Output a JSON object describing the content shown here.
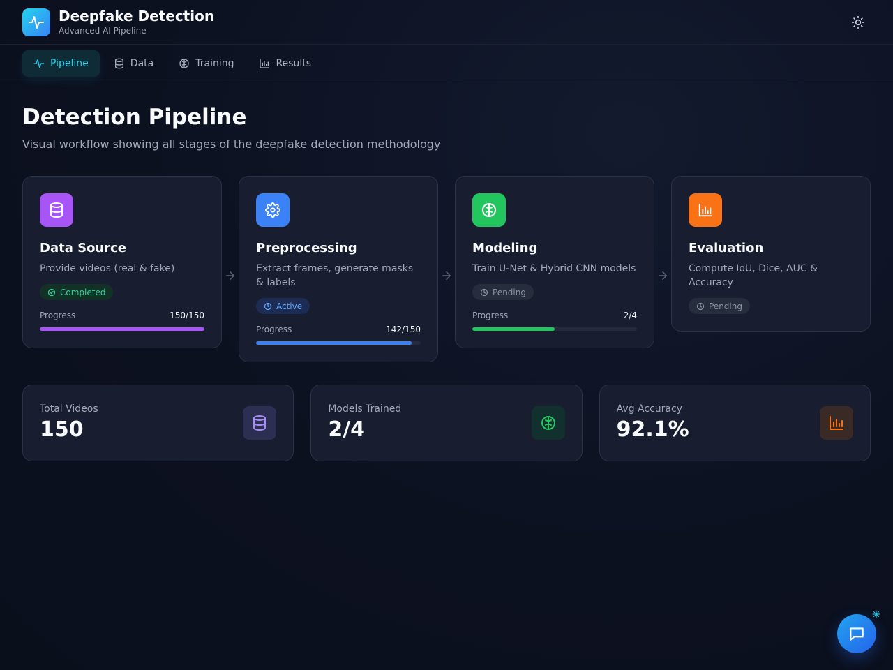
{
  "app": {
    "title": "Deepfake Detection",
    "subtitle": "Advanced AI Pipeline",
    "accent": "#22d3ee"
  },
  "header": {
    "theme_toggle_icon": "sun-icon"
  },
  "nav": {
    "items": [
      {
        "label": "Pipeline",
        "icon": "activity-icon",
        "active": true
      },
      {
        "label": "Data",
        "icon": "database-icon",
        "active": false
      },
      {
        "label": "Training",
        "icon": "brain-icon",
        "active": false
      },
      {
        "label": "Results",
        "icon": "bar-chart-icon",
        "active": false
      }
    ]
  },
  "page": {
    "title": "Detection Pipeline",
    "subtitle": "Visual workflow showing all stages of the deepfake detection methodology"
  },
  "stages": [
    {
      "title": "Data Source",
      "description": "Provide videos (real & fake)",
      "status": "Completed",
      "icon": "database-icon",
      "color": "#a855f7",
      "progress_label": "Progress",
      "progress_value": "150/150",
      "progress_fraction": 1.0
    },
    {
      "title": "Preprocessing",
      "description": "Extract frames, generate masks & labels",
      "status": "Active",
      "icon": "gear-icon",
      "color": "#3b82f6",
      "progress_label": "Progress",
      "progress_value": "142/150",
      "progress_fraction": 0.9467
    },
    {
      "title": "Modeling",
      "description": "Train U-Net & Hybrid CNN models",
      "status": "Pending",
      "icon": "brain-icon",
      "color": "#22c55e",
      "progress_label": "Progress",
      "progress_value": "2/4",
      "progress_fraction": 0.5
    },
    {
      "title": "Evaluation",
      "description": "Compute IoU, Dice, AUC & Accuracy",
      "status": "Pending",
      "icon": "bar-chart-icon",
      "color": "#f97316"
    }
  ],
  "stats": [
    {
      "label": "Total Videos",
      "value": "150",
      "icon": "database-icon",
      "color": "#a78bfa"
    },
    {
      "label": "Models Trained",
      "value": "2/4",
      "icon": "brain-icon",
      "color": "#22c55e"
    },
    {
      "label": "Avg Accuracy",
      "value": "92.1%",
      "icon": "bar-chart-icon",
      "color": "#f97316"
    }
  ],
  "chat": {
    "icon": "chat-icon"
  }
}
